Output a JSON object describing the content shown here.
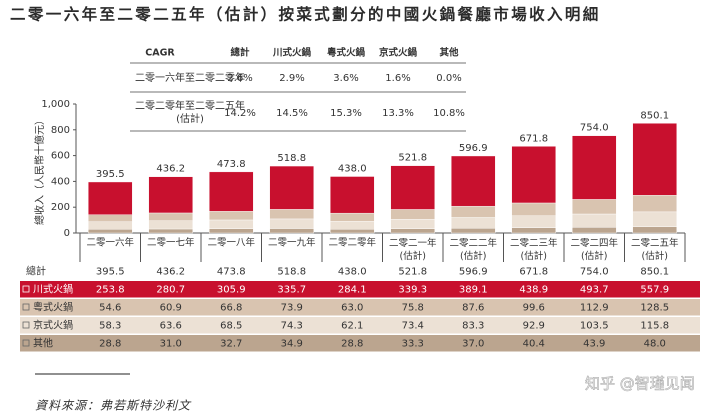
{
  "title": "二零一六年至二零二五年（估計）按菜式劃分的中國火鍋餐廳市場收入明細",
  "cagr_table": {
    "header": [
      "CAGR",
      "總計",
      "川式火鍋",
      "粵式火鍋",
      "京式火鍋",
      "其他"
    ],
    "rows": [
      [
        "二零一六年至二零二零年",
        "2.6%",
        "2.9%",
        "3.6%",
        "1.6%",
        "0.0%"
      ],
      [
        "二零二零年至二零二五年\n(估計)",
        "14.2%",
        "14.5%",
        "15.3%",
        "13.3%",
        "10.8%"
      ]
    ]
  },
  "chart_data": {
    "type": "stacked_bar",
    "y_label": "總收入（人民幣十億元）",
    "categories": [
      "二零一六年",
      "二零一七年",
      "二零一八年",
      "二零一九年",
      "二零二零年",
      "二零二一年\n(估計)",
      "二零二二年\n(估計)",
      "二零二三年\n(估計)",
      "二零二四年\n(估計)",
      "二零二五年\n(估計)"
    ],
    "ylim": [
      0,
      1000
    ],
    "yticks": [
      0,
      200,
      400,
      600,
      800,
      {
        "value": 1000,
        "label": "1,000"
      }
    ],
    "grid": false,
    "totals": {
      "name": "總計",
      "values": [
        395.5,
        436.2,
        473.8,
        518.8,
        438.0,
        521.8,
        596.9,
        671.8,
        754.0,
        850.1
      ],
      "value_labels": [
        "395.5",
        "436.2",
        "473.8",
        "518.8",
        "438.0",
        "521.8",
        "596.9",
        "671.8",
        "754.0",
        "850.1"
      ]
    },
    "series": [
      {
        "name": "川式火鍋",
        "color": "#c8102e",
        "values": [
          253.8,
          280.7,
          305.9,
          335.7,
          284.1,
          339.3,
          389.1,
          438.9,
          493.7,
          557.9
        ],
        "value_labels": [
          "253.8",
          "280.7",
          "305.9",
          "335.7",
          "284.1",
          "339.3",
          "389.1",
          "438.9",
          "493.7",
          "557.9"
        ]
      },
      {
        "name": "粵式火鍋",
        "color": "#d9c4b0",
        "values": [
          54.6,
          60.9,
          66.8,
          73.9,
          63.0,
          75.8,
          87.6,
          99.6,
          112.9,
          128.5
        ],
        "value_labels": [
          "54.6",
          "60.9",
          "66.8",
          "73.9",
          "63.0",
          "75.8",
          "87.6",
          "99.6",
          "112.9",
          "128.5"
        ]
      },
      {
        "name": "京式火鍋",
        "color": "#ece1d5",
        "values": [
          58.3,
          63.6,
          68.5,
          74.3,
          62.1,
          73.4,
          83.3,
          92.9,
          103.5,
          115.8
        ],
        "value_labels": [
          "58.3",
          "63.6",
          "68.5",
          "74.3",
          "62.1",
          "73.4",
          "83.3",
          "92.9",
          "103.5",
          "115.8"
        ]
      },
      {
        "name": "其他",
        "color": "#bba58f",
        "values": [
          28.8,
          31.0,
          32.7,
          34.9,
          28.8,
          33.3,
          37.0,
          40.4,
          43.9,
          48.0
        ],
        "value_labels": [
          "28.8",
          "31.0",
          "32.7",
          "34.9",
          "28.8",
          "33.3",
          "37.0",
          "40.4",
          "43.9",
          "48.0"
        ]
      }
    ]
  },
  "source": "資料來源：弗若斯特沙利文",
  "watermark": "知乎 @智瑾见闻"
}
